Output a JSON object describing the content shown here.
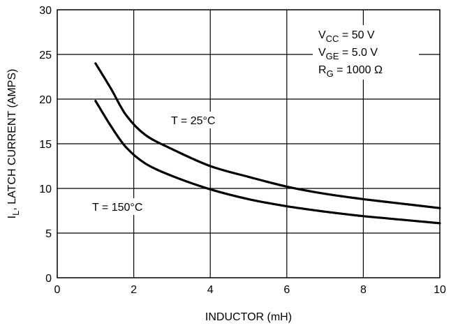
{
  "chart_data": {
    "type": "line",
    "xlabel": "INDUCTOR (mH)",
    "ylabel": "I",
    "ylabel_sub": "L",
    "ylabel_rest": ", LATCH CURRENT (AMPS)",
    "xlim": [
      0,
      10
    ],
    "ylim": [
      0,
      30
    ],
    "x_ticks": [
      "0",
      "2",
      "4",
      "6",
      "8",
      "10"
    ],
    "y_ticks": [
      "0",
      "5",
      "10",
      "15",
      "20",
      "25",
      "30"
    ],
    "grid": true,
    "conditions": {
      "vcc": {
        "main": "V",
        "sub": "CC",
        "rest": " = 50 V"
      },
      "vge": {
        "main": "V",
        "sub": "GE",
        "rest": " = 5.0 V"
      },
      "rg": {
        "main": "R",
        "sub": "G",
        "rest": " = 1000 Ω"
      }
    },
    "series": [
      {
        "name": "T = 25°C",
        "x": [
          1.0,
          1.4,
          1.8,
          2.3,
          3.0,
          4.0,
          5.0,
          6.0,
          7.0,
          8.0,
          9.0,
          10.0
        ],
        "y": [
          24.0,
          21.2,
          18.2,
          16.0,
          14.4,
          12.5,
          11.3,
          10.2,
          9.4,
          8.8,
          8.3,
          7.8
        ]
      },
      {
        "name": "T = 150°C",
        "x": [
          1.0,
          1.4,
          1.8,
          2.3,
          3.0,
          4.0,
          5.0,
          6.0,
          7.0,
          8.0,
          9.0,
          10.0
        ],
        "y": [
          19.8,
          17.0,
          14.6,
          12.8,
          11.4,
          9.9,
          8.8,
          8.0,
          7.4,
          6.9,
          6.5,
          6.1
        ]
      }
    ]
  }
}
